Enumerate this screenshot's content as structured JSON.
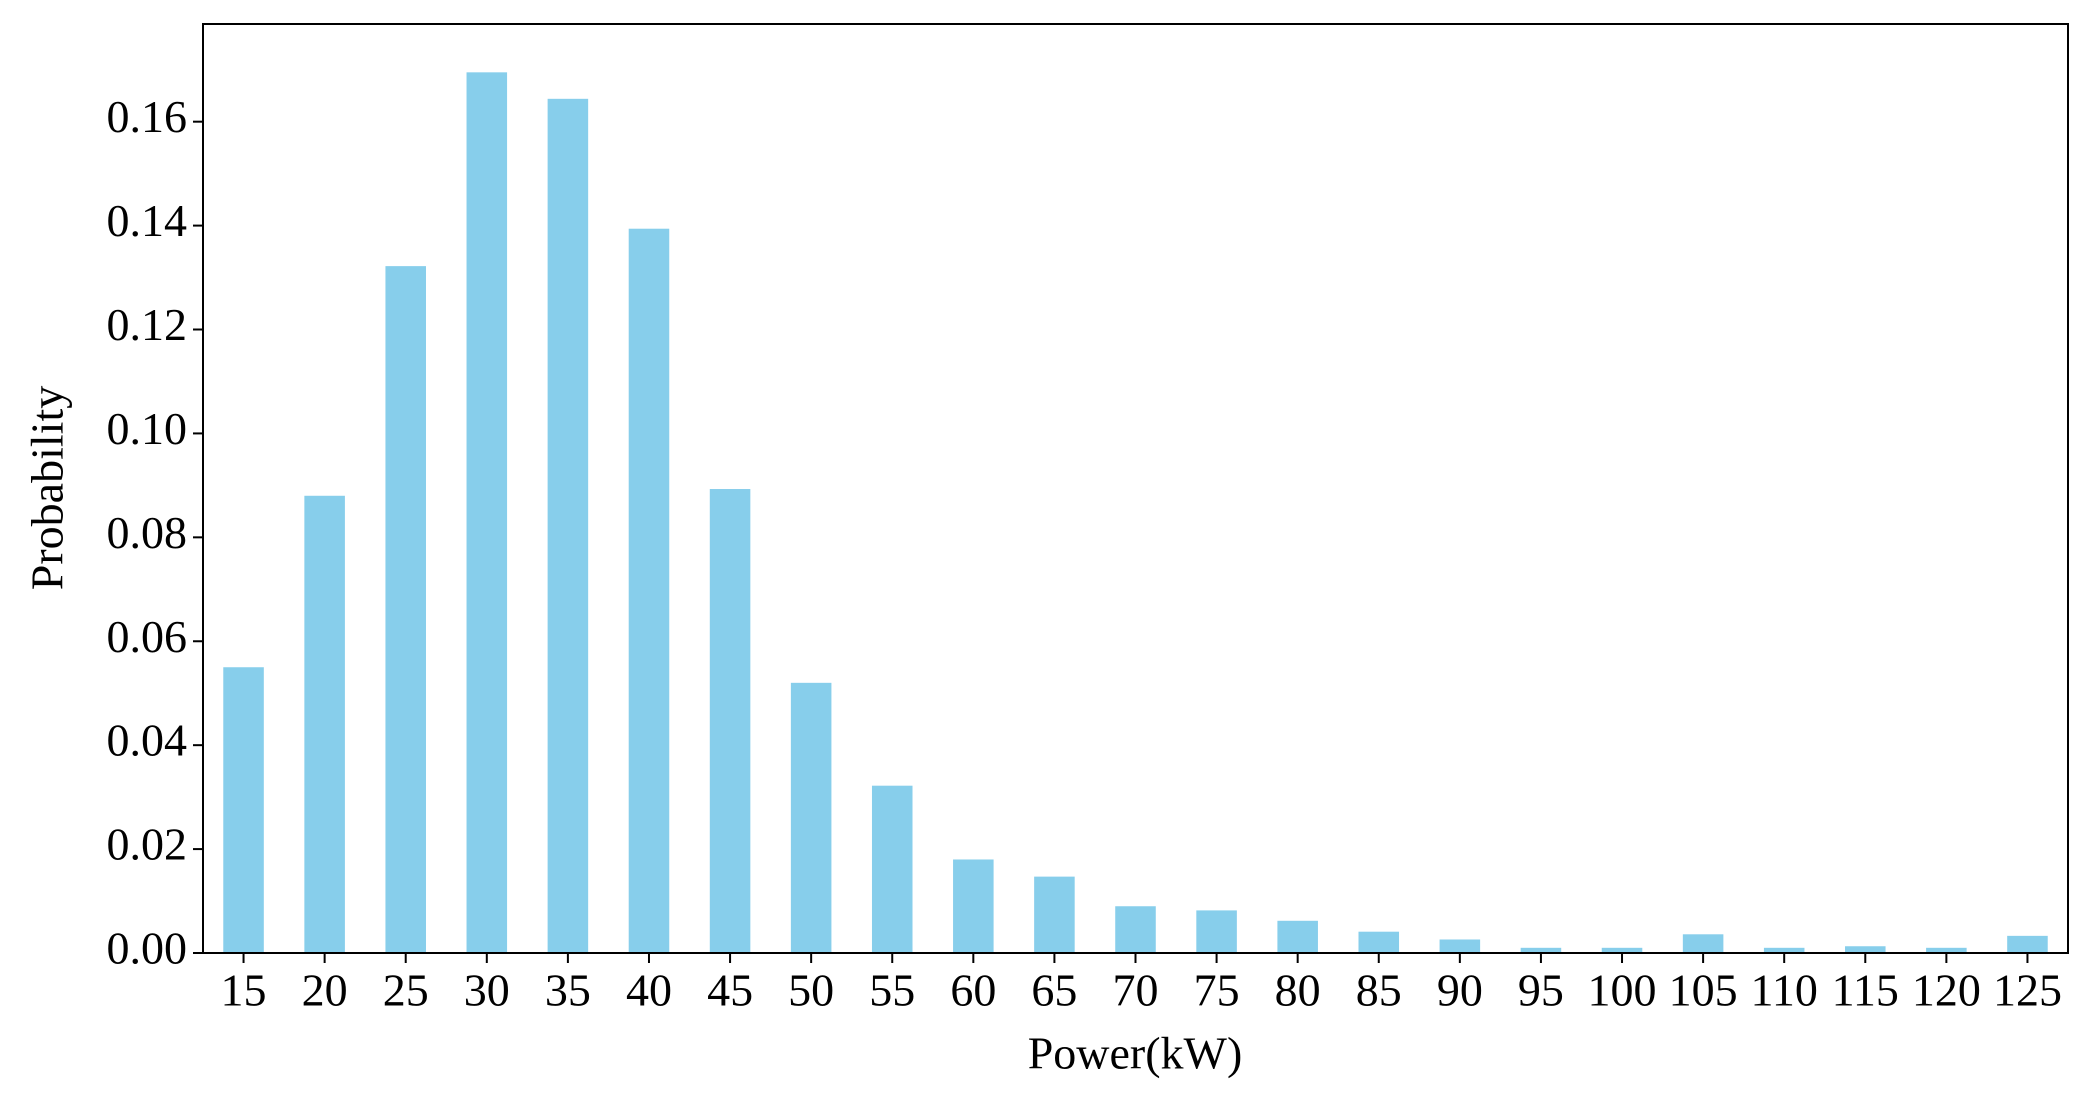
{
  "chart_data": {
    "type": "bar",
    "x_label": "Power(kW)",
    "y_label": "Probability",
    "categories": [
      "15",
      "20",
      "25",
      "30",
      "35",
      "40",
      "45",
      "50",
      "55",
      "60",
      "65",
      "70",
      "75",
      "80",
      "85",
      "90",
      "95",
      "100",
      "105",
      "110",
      "115",
      "120",
      "125"
    ],
    "values": [
      0.055,
      0.088,
      0.1322,
      0.1695,
      0.1644,
      0.1394,
      0.0893,
      0.052,
      0.0322,
      0.018,
      0.0147,
      0.009,
      0.0082,
      0.0062,
      0.0041,
      0.0026,
      0.001,
      0.001,
      0.0036,
      0.001,
      0.0013,
      0.001,
      0.0033
    ],
    "color": "#87ceeb",
    "ylim": [
      0,
      0.1788
    ],
    "yticks": [
      {
        "value": 0,
        "label": "0.00"
      },
      {
        "value": 0.02,
        "label": "0.02"
      },
      {
        "value": 0.04,
        "label": "0.04"
      },
      {
        "value": 0.06,
        "label": "0.06"
      },
      {
        "value": 0.08,
        "label": "0.08"
      },
      {
        "value": 0.1,
        "label": "0.10"
      },
      {
        "value": 0.12,
        "label": "0.12"
      },
      {
        "value": 0.14,
        "label": "0.14"
      },
      {
        "value": 0.16,
        "label": "0.16"
      }
    ],
    "grid": false
  }
}
